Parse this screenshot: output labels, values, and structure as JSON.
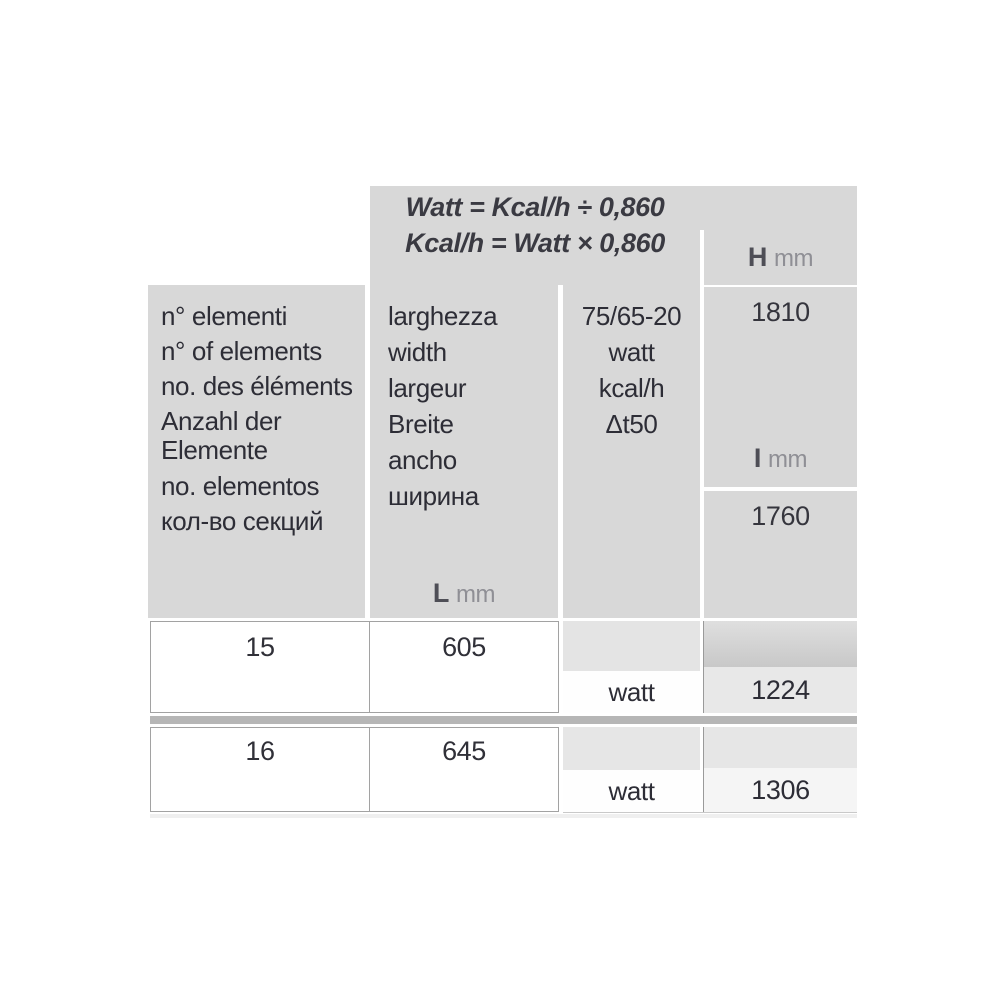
{
  "formulas": {
    "line1": "Watt = Kcal/h ÷ 0,860",
    "line2": "Kcal/h = Watt × 0,860"
  },
  "header": {
    "elements": {
      "labels": [
        "n° elementi",
        "n° of elements",
        "no. des éléments",
        "Anzahl der",
        "Elemente",
        "no. elementos",
        "кол-во секций"
      ]
    },
    "width": {
      "labels": [
        "larghezza",
        "width",
        "largeur",
        "Breite",
        "ancho",
        "ширина"
      ],
      "unit_letter": "L",
      "unit": "mm"
    },
    "power": {
      "labels": [
        "75/65-20",
        "watt",
        "kcal/h",
        "Δt50"
      ]
    },
    "h_col": {
      "letter": "H",
      "unit": "mm",
      "value": "1810"
    },
    "i_col": {
      "letter": "I",
      "unit": "mm",
      "value": "1760"
    }
  },
  "rows": [
    {
      "n_elements": "15",
      "l_mm": "605",
      "unit": "watt",
      "power": "1224"
    },
    {
      "n_elements": "16",
      "l_mm": "645",
      "unit": "watt",
      "power": "1306"
    }
  ],
  "colors": {
    "panel": "#d8d8d8",
    "row_separator": "#b6b6b6",
    "cell_border": "#a2a2a2",
    "text": "#2d2d36",
    "unit_text": "#8f8f95",
    "subcell_light": "#e5e5e5",
    "subcell_mid": "#d3d3d3"
  }
}
